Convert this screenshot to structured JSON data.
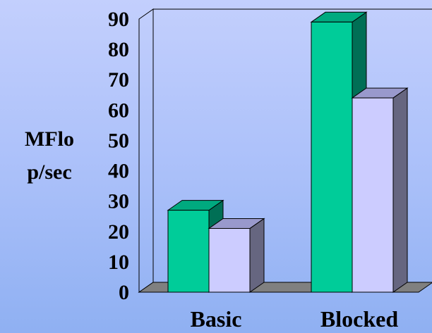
{
  "chart_data": {
    "type": "bar",
    "title": "",
    "xlabel": "",
    "ylabel": "MFlop/sec",
    "ylabel_lines": [
      "MFlo",
      "p/sec"
    ],
    "categories": [
      "Basic",
      "Blocked"
    ],
    "series": [
      {
        "values": [
          27,
          89
        ]
      },
      {
        "values": [
          21,
          64
        ]
      }
    ],
    "ylim": [
      0,
      90
    ],
    "yticks": [
      "0",
      "10",
      "20",
      "30",
      "40",
      "50",
      "60",
      "70",
      "80",
      "90"
    ],
    "grid": false,
    "legend": "none",
    "three_d": true,
    "colors": {
      "series_front": [
        "#00cc99",
        "#ccccff"
      ],
      "series_side": [
        "#006f55",
        "#666680"
      ],
      "series_top": [
        "#00aa7f",
        "#9999cc"
      ],
      "floor": "#808080",
      "axis": "#000000"
    }
  }
}
